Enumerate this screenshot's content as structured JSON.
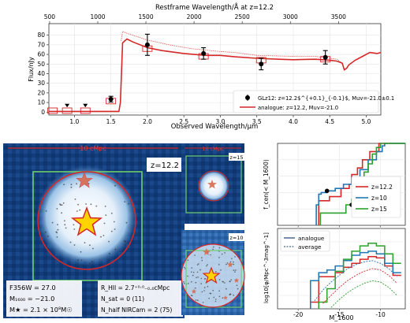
{
  "chart_data": [
    {
      "type": "line",
      "panel": "spectrum",
      "top_axis_label": "Restframe Wavelength/Å at z=12.2",
      "top_ticks": [
        "500",
        "1000",
        "1500",
        "2000",
        "2500",
        "3000",
        "3500"
      ],
      "xlabel": "Observed Wavelength/μm",
      "ylabel": "Flux/nJy",
      "xlim": [
        0.65,
        5.2
      ],
      "ylim": [
        -3,
        92
      ],
      "x_ticks": [
        "1.0",
        "1.5",
        "2.0",
        "2.5",
        "3.0",
        "3.5",
        "4.0",
        "4.5",
        "5.0"
      ],
      "y_ticks": [
        "0",
        "10",
        "20",
        "30",
        "40",
        "50",
        "60",
        "70",
        "80"
      ],
      "grid": true,
      "legend_position": "lower-right",
      "legend": [
        {
          "label": "GLz12: z=12.2$^{+0.1}_{-0.1}$, Muv=-21.0±0.1",
          "color": "#000000",
          "marker": "circle"
        },
        {
          "label": "analogue: z=12.2, Muv=-21.0",
          "color": "#d62728",
          "marker": "line"
        }
      ],
      "observed_points": [
        {
          "x": 0.9,
          "y": 7,
          "upper_limit": true
        },
        {
          "x": 1.15,
          "y": 7,
          "upper_limit": true
        },
        {
          "x": 1.5,
          "y": 13.5,
          "err": 3
        },
        {
          "x": 2.0,
          "y": 70,
          "err": 11
        },
        {
          "x": 2.77,
          "y": 61,
          "err": 6
        },
        {
          "x": 3.56,
          "y": 50,
          "err": 6
        },
        {
          "x": 4.44,
          "y": 57,
          "err": 7
        }
      ],
      "model_boxes": [
        {
          "x": 0.7,
          "y": 1.5
        },
        {
          "x": 0.9,
          "y": 1.5
        },
        {
          "x": 1.15,
          "y": 1.5
        },
        {
          "x": 1.5,
          "y": 11.5
        },
        {
          "x": 2.0,
          "y": 66
        },
        {
          "x": 2.77,
          "y": 58
        },
        {
          "x": 3.56,
          "y": 54
        },
        {
          "x": 4.44,
          "y": 55
        }
      ],
      "model_curve": [
        [
          0.65,
          0.8
        ],
        [
          1.61,
          0.8
        ],
        [
          1.63,
          10
        ],
        [
          1.66,
          72
        ],
        [
          1.72,
          76
        ],
        [
          1.8,
          73
        ],
        [
          2.0,
          67
        ],
        [
          2.2,
          64
        ],
        [
          2.5,
          61
        ],
        [
          2.8,
          59
        ],
        [
          3.0,
          59
        ],
        [
          3.2,
          57.5
        ],
        [
          3.5,
          56
        ],
        [
          3.8,
          55
        ],
        [
          4.0,
          54.5
        ],
        [
          4.3,
          55
        ],
        [
          4.5,
          54
        ],
        [
          4.6,
          53
        ],
        [
          4.67,
          51
        ],
        [
          4.7,
          44
        ],
        [
          4.73,
          45.5
        ],
        [
          4.76,
          49
        ],
        [
          4.85,
          54
        ],
        [
          4.95,
          58
        ],
        [
          5.05,
          62
        ],
        [
          5.15,
          61
        ],
        [
          5.2,
          62
        ]
      ],
      "model_curve_upper": [
        [
          1.64,
          74
        ],
        [
          1.66,
          84
        ],
        [
          1.72,
          82
        ],
        [
          1.8,
          80
        ],
        [
          2.0,
          75
        ],
        [
          2.3,
          70
        ],
        [
          2.6,
          66
        ],
        [
          3.0,
          63
        ],
        [
          3.2,
          62
        ],
        [
          3.5,
          59
        ],
        [
          4.0,
          58
        ],
        [
          4.3,
          58
        ],
        [
          4.6,
          55
        ],
        [
          4.67,
          51
        ]
      ]
    },
    {
      "type": "line",
      "panel": "cumulative",
      "ylabel": "f_cen(< M_1600)",
      "x_ticks": [
        "-20",
        "-15",
        "-10"
      ],
      "xlim": [
        -22.5,
        -7
      ],
      "ylim": [
        0,
        1
      ],
      "legend": [
        "z=12.2",
        "z=10",
        "z=15"
      ],
      "legend_position": "center-right",
      "series": [
        {
          "name": "z=12.2",
          "color": "#d62728",
          "x": [
            -17.5,
            -17.5,
            -16.2,
            -16.2,
            -14.8,
            -14.8,
            -13.8,
            -13.5,
            -12.8,
            -12.2,
            -11.3,
            -10.2,
            -10.2,
            -7
          ],
          "y": [
            0,
            0.3,
            0.3,
            0.35,
            0.35,
            0.45,
            0.5,
            0.62,
            0.7,
            0.8,
            0.9,
            0.97,
            1.0,
            1.0
          ]
        },
        {
          "name": "z=10",
          "color": "#1f77b4",
          "x": [
            -17.8,
            -17.8,
            -17.5,
            -17.2,
            -16.5,
            -15.5,
            -14.5,
            -13.5,
            -12.5,
            -11.5,
            -10.5,
            -9.8,
            -9.5,
            -7
          ],
          "y": [
            0,
            0.25,
            0.38,
            0.4,
            0.42,
            0.45,
            0.5,
            0.58,
            0.68,
            0.8,
            0.9,
            0.97,
            1.0,
            1.0
          ]
        },
        {
          "name": "z=15",
          "color": "#2ca02c",
          "x": [
            -17.3,
            -17.3,
            -14.2,
            -14.2,
            -13.5,
            -13.0,
            -12.5,
            -12.0,
            -11.5,
            -11.0,
            -10.5,
            -10.0,
            -10.0,
            -7
          ],
          "y": [
            0,
            0.15,
            0.15,
            0.25,
            0.32,
            0.42,
            0.55,
            0.65,
            0.75,
            0.87,
            0.95,
            0.98,
            1.0,
            1.0
          ]
        }
      ],
      "markers": [
        {
          "x": -16.5,
          "y": 0.42
        },
        {
          "x": -13.5,
          "y": 0.25
        }
      ]
    },
    {
      "type": "line",
      "panel": "luminosity-function",
      "ylabel": "log10[φ/Mpc^-3mag^-1]",
      "xlabel": "M_1600",
      "x_ticks": [
        "-20",
        "-15",
        "-10"
      ],
      "xlim": [
        -22.5,
        -7
      ],
      "ylim": [
        -8,
        -2
      ],
      "legend": [
        {
          "label": "analogue",
          "style": "solid"
        },
        {
          "label": "average",
          "style": "dashed"
        }
      ],
      "legend_position": "upper-left",
      "series": [
        {
          "name": "z=12.2",
          "color": "#d62728",
          "style": "step",
          "x": [
            -18,
            -17,
            -16,
            -15,
            -14,
            -13,
            -12,
            -11,
            -10,
            -9,
            -8
          ],
          "y": [
            -7.5,
            -5.6,
            -5.6,
            -5.3,
            -4.9,
            -4.6,
            -4.3,
            -4.1,
            -4.2,
            -4.8,
            -5.5
          ]
        },
        {
          "name": "z=10",
          "color": "#1f77b4",
          "style": "step",
          "x": [
            -18,
            -17,
            -16,
            -15,
            -14,
            -13,
            -12,
            -11,
            -10,
            -9,
            -8
          ],
          "y": [
            -5.9,
            -5.3,
            -5.1,
            -4.8,
            -4.4,
            -4.0,
            -3.8,
            -3.7,
            -3.9,
            -4.6,
            -5.3
          ]
        },
        {
          "name": "z=15",
          "color": "#2ca02c",
          "style": "step",
          "x": [
            -17,
            -16,
            -15,
            -14,
            -13,
            -12,
            -11,
            -10,
            -9,
            -8
          ],
          "y": [
            -7.5,
            -6.5,
            -5.2,
            -4.3,
            -3.7,
            -3.3,
            -3.1,
            -3.3,
            -3.9,
            -4.6
          ]
        },
        {
          "name": "z=12.2",
          "color": "#d62728",
          "style": "dashed",
          "x": [
            -17,
            -16,
            -15,
            -14,
            -13,
            -12,
            -11,
            -10,
            -9,
            -8
          ],
          "y": [
            -7.6,
            -7.0,
            -6.4,
            -5.9,
            -5.5,
            -5.2,
            -5.0,
            -5.1,
            -5.5,
            -6.1
          ]
        },
        {
          "name": "z=10",
          "color": "#1f77b4",
          "style": "dashed",
          "x": [
            -18,
            -17,
            -16,
            -15,
            -14,
            -13,
            -12,
            -11,
            -10,
            -9,
            -8
          ],
          "y": [
            -7.4,
            -6.6,
            -6.0,
            -5.5,
            -5.0,
            -4.7,
            -4.5,
            -4.4,
            -4.6,
            -5.0,
            -5.6
          ]
        },
        {
          "name": "z=15",
          "color": "#2ca02c",
          "style": "dashed",
          "x": [
            -16,
            -15,
            -14,
            -13,
            -12,
            -11,
            -10,
            -9,
            -8
          ],
          "y": [
            -7.9,
            -7.3,
            -6.8,
            -6.4,
            -6.1,
            -5.9,
            -6.0,
            -6.4,
            -7.0
          ]
        }
      ]
    }
  ],
  "images": {
    "main": {
      "scale_label": "10 cMpc",
      "redshift": "z=12.2",
      "info_left": [
        "F356W = 27.0",
        "M₁₆₀₀ = −21.0",
        "M★ = 2.1 × 10⁸M☉"
      ],
      "info_right": [
        "R_HII = 2.7⁺⁰·⁰₋₀.₀cMpc",
        "N_sat = 0 (11)",
        "N_half NIRCam = 2 (75)"
      ]
    },
    "small_top": {
      "scale_label": "10 cMpc",
      "redshift": "z=15"
    },
    "small_bottom": {
      "redshift": "z=10"
    }
  },
  "colors": {
    "red": "#d62728",
    "blue": "#1f77b4",
    "green": "#2ca02c",
    "navy": "#0b2f6b",
    "star": "#ffd400",
    "box": "#6fd16f"
  }
}
